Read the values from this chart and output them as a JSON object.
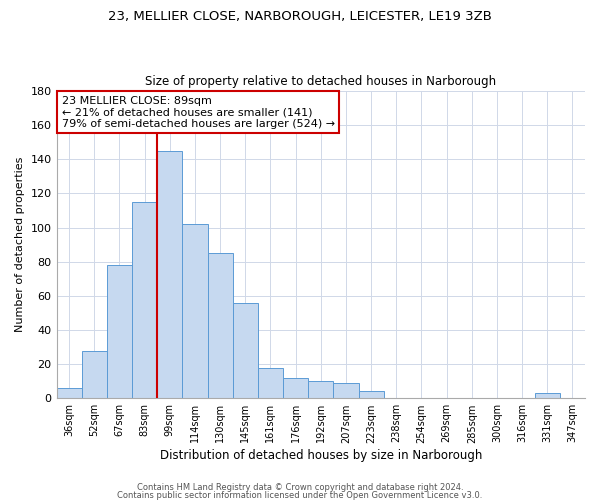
{
  "title1": "23, MELLIER CLOSE, NARBOROUGH, LEICESTER, LE19 3ZB",
  "title2": "Size of property relative to detached houses in Narborough",
  "xlabel": "Distribution of detached houses by size in Narborough",
  "ylabel": "Number of detached properties",
  "bar_labels": [
    "36sqm",
    "52sqm",
    "67sqm",
    "83sqm",
    "99sqm",
    "114sqm",
    "130sqm",
    "145sqm",
    "161sqm",
    "176sqm",
    "192sqm",
    "207sqm",
    "223sqm",
    "238sqm",
    "254sqm",
    "269sqm",
    "285sqm",
    "300sqm",
    "316sqm",
    "331sqm",
    "347sqm"
  ],
  "bar_values": [
    6,
    28,
    78,
    115,
    145,
    102,
    85,
    56,
    18,
    12,
    10,
    9,
    4,
    0,
    0,
    0,
    0,
    0,
    0,
    3,
    0
  ],
  "bar_color": "#c6d9f0",
  "bar_edge_color": "#5b9bd5",
  "vline_color": "#cc0000",
  "ylim": [
    0,
    180
  ],
  "yticks": [
    0,
    20,
    40,
    60,
    80,
    100,
    120,
    140,
    160,
    180
  ],
  "annotation_text": "23 MELLIER CLOSE: 89sqm\n← 21% of detached houses are smaller (141)\n79% of semi-detached houses are larger (524) →",
  "annotation_box_color": "#ffffff",
  "annotation_box_edge": "#cc0000",
  "footer1": "Contains HM Land Registry data © Crown copyright and database right 2024.",
  "footer2": "Contains public sector information licensed under the Open Government Licence v3.0.",
  "background_color": "#ffffff",
  "grid_color": "#d0d8e8"
}
